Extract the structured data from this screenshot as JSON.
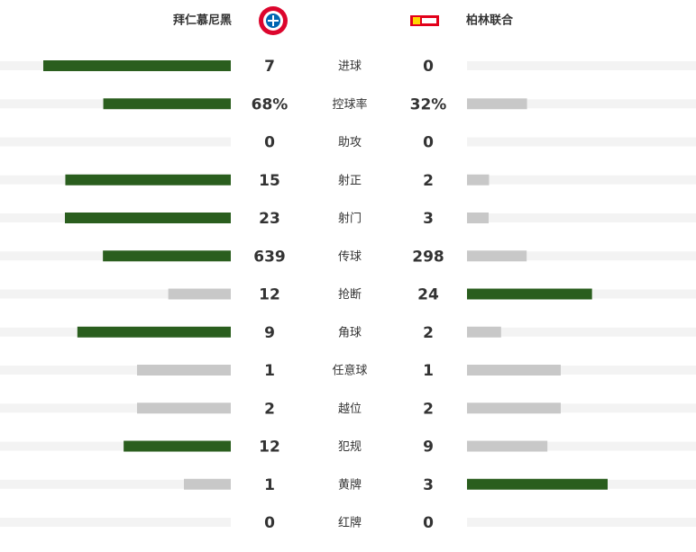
{
  "home": {
    "name": "拜仁慕尼黑"
  },
  "away": {
    "name": "柏林联合"
  },
  "stats": [
    {
      "label": "进球",
      "values": [
        7,
        0
      ]
    },
    {
      "label": "控球率",
      "values": [
        68,
        32
      ],
      "value_labels": [
        "68%",
        "32%"
      ]
    },
    {
      "label": "助攻",
      "values": [
        0,
        0
      ]
    },
    {
      "label": "射正",
      "values": [
        15,
        2
      ]
    },
    {
      "label": "射门",
      "values": [
        23,
        3
      ]
    },
    {
      "label": "传球",
      "values": [
        639,
        298
      ]
    },
    {
      "label": "抢断",
      "values": [
        12,
        24
      ]
    },
    {
      "label": "角球",
      "values": [
        9,
        2
      ]
    },
    {
      "label": "任意球",
      "values": [
        1,
        1
      ]
    },
    {
      "label": "越位",
      "values": [
        2,
        2
      ]
    },
    {
      "label": "犯规",
      "values": [
        12,
        9
      ]
    },
    {
      "label": "黄牌",
      "values": [
        1,
        3
      ]
    },
    {
      "label": "红牌",
      "values": [
        0,
        0
      ]
    }
  ]
}
